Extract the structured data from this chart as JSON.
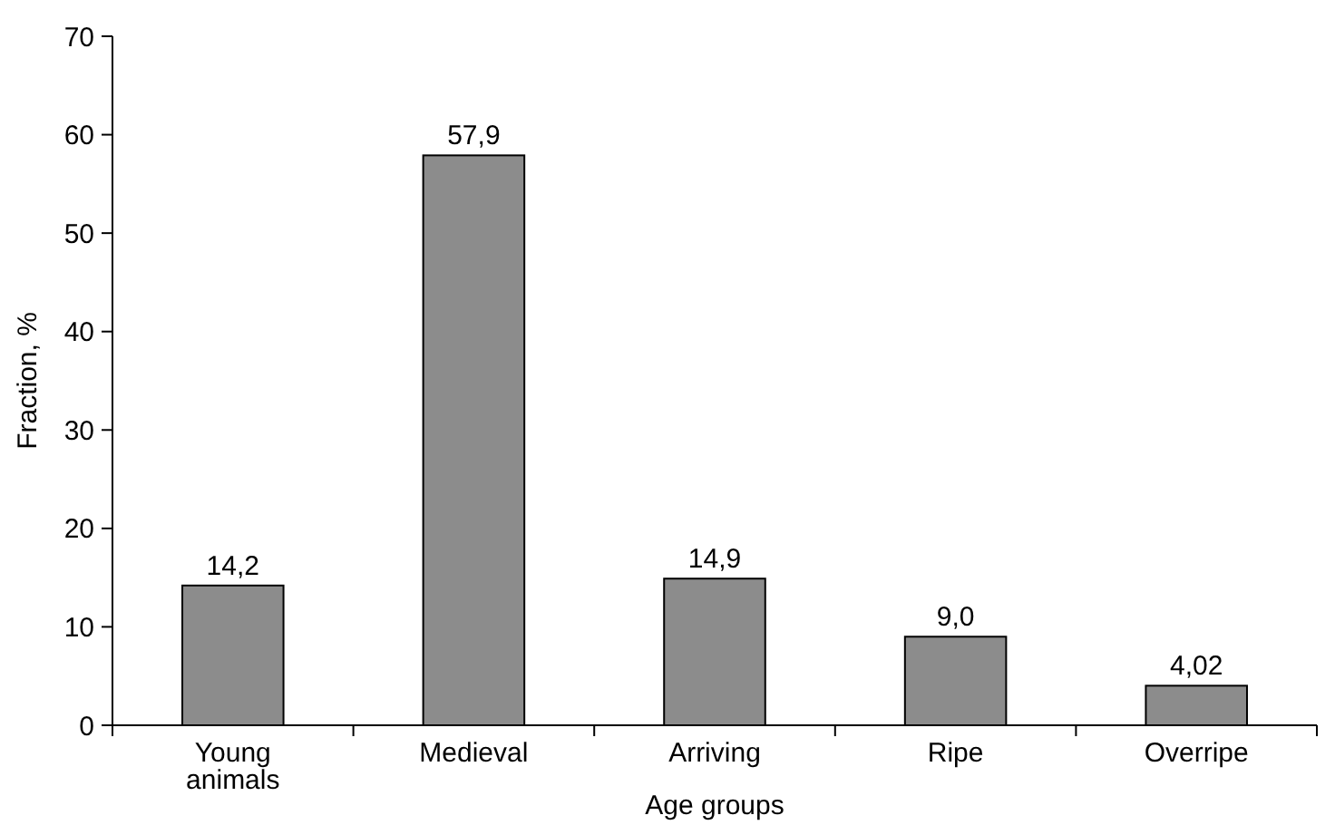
{
  "chart_data": {
    "type": "bar",
    "xlabel": "Age groups",
    "ylabel": "Fraction, %",
    "categories": [
      "Young animals",
      "Medieval",
      "Arriving",
      "Ripe",
      "Overripe"
    ],
    "values": [
      14.2,
      57.9,
      14.9,
      9.0,
      4.02
    ],
    "value_labels": [
      "14,2",
      "57,9",
      "14,9",
      "9,0",
      "4,02"
    ],
    "color": "#8c8c8c",
    "ylim": [
      0,
      70
    ],
    "yticks": [
      0,
      10,
      20,
      30,
      40,
      50,
      60,
      70
    ]
  }
}
